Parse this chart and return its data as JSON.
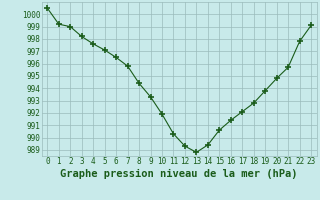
{
  "x": [
    0,
    1,
    2,
    3,
    4,
    5,
    6,
    7,
    8,
    9,
    10,
    11,
    12,
    13,
    14,
    15,
    16,
    17,
    18,
    19,
    20,
    21,
    22,
    23
  ],
  "y": [
    1000.5,
    999.2,
    999.0,
    998.2,
    997.6,
    997.1,
    996.5,
    995.8,
    994.4,
    993.3,
    991.9,
    990.3,
    989.3,
    988.8,
    989.4,
    990.6,
    991.4,
    992.1,
    992.8,
    993.8,
    994.8,
    995.7,
    997.8,
    999.1
  ],
  "line_color": "#1a5c1a",
  "marker_color": "#1a5c1a",
  "bg_color": "#c8eaea",
  "grid_color": "#9bbcbc",
  "xlabel": "Graphe pression niveau de la mer (hPa)",
  "ylim": [
    988.5,
    1001.0
  ],
  "xlim": [
    -0.5,
    23.5
  ],
  "yticks": [
    989,
    990,
    991,
    992,
    993,
    994,
    995,
    996,
    997,
    998,
    999,
    1000
  ],
  "xticks": [
    0,
    1,
    2,
    3,
    4,
    5,
    6,
    7,
    8,
    9,
    10,
    11,
    12,
    13,
    14,
    15,
    16,
    17,
    18,
    19,
    20,
    21,
    22,
    23
  ],
  "tick_fontsize": 5.5,
  "label_fontsize": 7.5
}
